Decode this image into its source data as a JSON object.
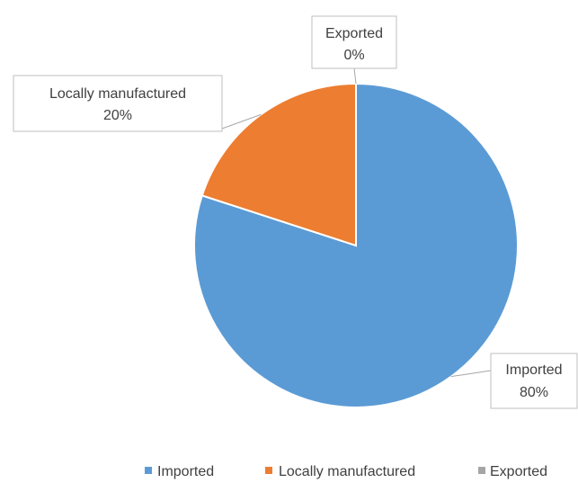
{
  "chart_data": {
    "type": "pie",
    "title": "",
    "categories": [
      "Imported",
      "Locally manufactured",
      "Exported"
    ],
    "values": [
      80,
      20,
      0
    ],
    "colors": [
      "#5b9bd5",
      "#ed7d31",
      "#a5a5a5"
    ],
    "start_angle_deg": 0,
    "direction": "clockwise",
    "data_labels": [
      {
        "category": "Imported",
        "text": "80%"
      },
      {
        "category": "Locally manufactured",
        "text": "20%"
      },
      {
        "category": "Exported",
        "text": "0%"
      }
    ],
    "legend": {
      "placement": "bottom",
      "entries": [
        "Imported",
        "Locally manufactured",
        "Exported"
      ]
    }
  }
}
